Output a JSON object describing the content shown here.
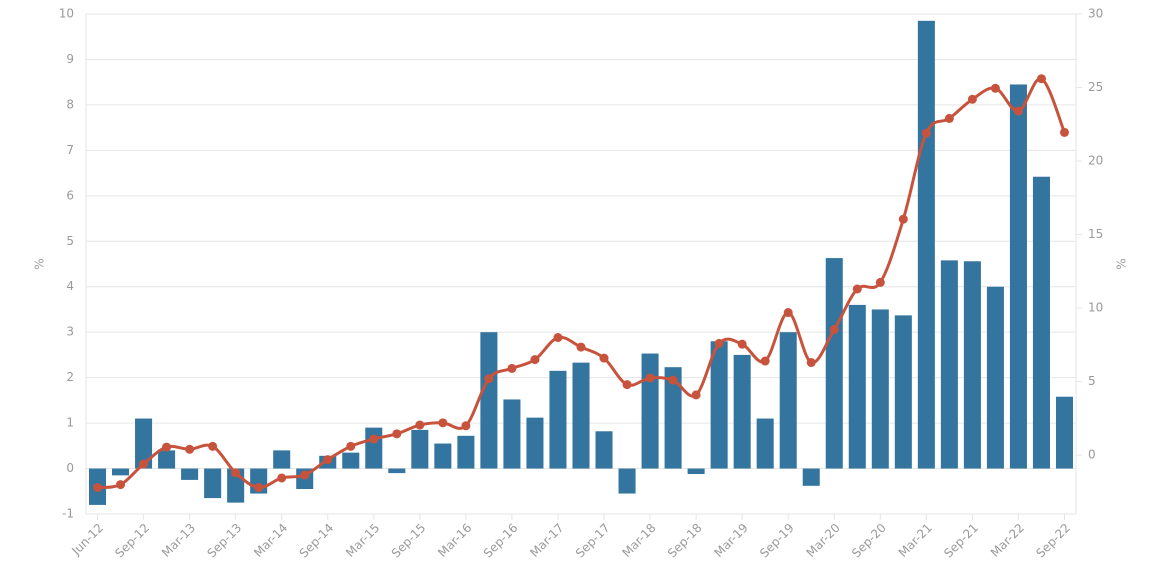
{
  "chart_data": {
    "type": "bar_line",
    "categories": [
      "Jun-12",
      null,
      "Sep-12",
      null,
      "Mar-13",
      null,
      "Sep-13",
      null,
      "Mar-14",
      null,
      "Sep-14",
      null,
      "Mar-15",
      null,
      "Sep-15",
      null,
      "Mar-16",
      null,
      "Sep-16",
      null,
      "Mar-17",
      null,
      "Sep-17",
      null,
      "Mar-18",
      null,
      "Sep-18",
      null,
      "Mar-19",
      null,
      "Sep-19",
      null,
      "Mar-20",
      null,
      "Sep-20",
      null,
      "Mar-21",
      null,
      "Sep-21",
      null,
      "Mar-22",
      null,
      "Sep-22"
    ],
    "series": [
      {
        "type": "bar",
        "color": "#34759f",
        "values": [
          -0.8,
          -0.15,
          1.1,
          0.4,
          -0.25,
          -0.65,
          -0.75,
          -0.55,
          0.4,
          -0.45,
          0.28,
          0.35,
          0.9,
          -0.1,
          0.85,
          0.55,
          0.72,
          3.0,
          1.52,
          1.12,
          2.15,
          2.33,
          0.82,
          -0.55,
          2.53,
          2.23,
          -0.12,
          2.8,
          2.5,
          1.1,
          3.0,
          -0.38,
          4.63,
          3.6,
          3.5,
          3.37,
          9.85,
          4.58,
          4.56,
          4.0,
          8.45,
          6.42,
          1.58
        ]
      },
      {
        "type": "line",
        "axis": "y2",
        "color": "#c8533d",
        "values": [
          -2.2,
          -2.0,
          -0.6,
          0.55,
          0.4,
          0.6,
          -1.2,
          -2.2,
          -1.55,
          -1.35,
          -0.3,
          0.6,
          1.1,
          1.45,
          2.05,
          2.2,
          2.0,
          5.2,
          5.9,
          6.5,
          8.0,
          7.35,
          6.6,
          4.8,
          5.25,
          5.1,
          4.1,
          7.6,
          7.55,
          6.4,
          9.7,
          6.3,
          8.55,
          11.3,
          11.75,
          16.05,
          21.9,
          22.9,
          24.2,
          24.95,
          23.4,
          25.6,
          21.95
        ]
      }
    ],
    "ylabel": "%",
    "y2label": "%",
    "ylim": [
      -1,
      10
    ],
    "yticks": [
      -1,
      0,
      1,
      2,
      3,
      4,
      5,
      6,
      7,
      8,
      9,
      10
    ],
    "y2lim": [
      -4,
      30
    ],
    "y2ticks": [
      0,
      5,
      10,
      15,
      20,
      25,
      30
    ],
    "grid": true
  }
}
